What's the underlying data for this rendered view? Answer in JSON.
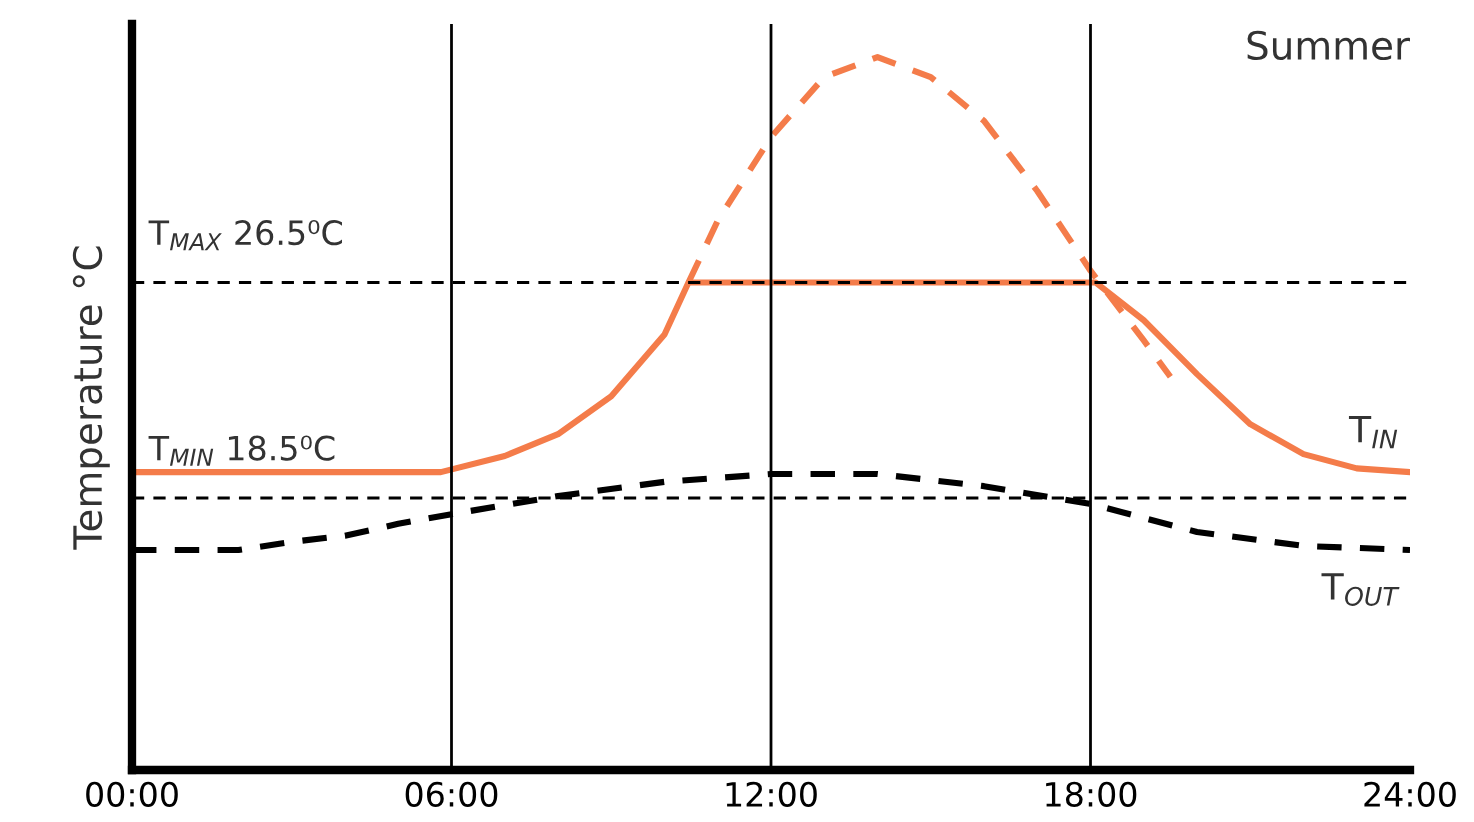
{
  "chart_data": {
    "type": "line",
    "title": "Summer",
    "ylabel": "Temperature °C",
    "xlim": [
      0,
      24
    ],
    "xticks": [
      {
        "value": 0,
        "label": "00:00"
      },
      {
        "value": 6,
        "label": "06:00"
      },
      {
        "value": 12,
        "label": "12:00"
      },
      {
        "value": 18,
        "label": "18:00"
      },
      {
        "value": 24,
        "label": "24:00"
      }
    ],
    "ylim": [
      8.4,
      36.1
    ],
    "tick_labels": "x",
    "grid": false,
    "legend": false,
    "series": [
      {
        "name": "T$_{IN}$",
        "color": "#f47c4a",
        "line_style": "solid",
        "x": [
          0,
          5.8,
          7,
          8,
          9,
          10,
          10.45,
          18.1,
          19,
          20,
          21,
          22,
          23,
          24
        ],
        "values": [
          19.46,
          19.46,
          20.06,
          20.87,
          22.28,
          24.57,
          26.5,
          26.5,
          25.1,
          23.1,
          21.24,
          20.13,
          19.6,
          19.46
        ]
      },
      {
        "color": "#f47c4a",
        "line_style": "dashed",
        "x": [
          10.45,
          11,
          12,
          13,
          14,
          15,
          16,
          17,
          18,
          19,
          19.5
        ],
        "values": [
          26.5,
          28.8,
          31.9,
          34.13,
          34.87,
          34.13,
          32.5,
          29.9,
          26.94,
          24.35,
          23.0
        ]
      },
      {
        "name": "T$_{OUT}$",
        "color": "#000000",
        "line_style": "dashed",
        "x": [
          0,
          2,
          3,
          4,
          5,
          6,
          8,
          10,
          12,
          14,
          16,
          18,
          19,
          20,
          22,
          24
        ],
        "values": [
          16.57,
          16.57,
          16.87,
          17.1,
          17.54,
          17.9,
          18.57,
          19.1,
          19.39,
          19.39,
          18.94,
          18.28,
          17.76,
          17.24,
          16.72,
          16.57
        ]
      }
    ],
    "ref_lines": [
      {
        "axis": "y",
        "value": 26.5,
        "label": "T$_{MAX}$ 26.5⁰C",
        "color": "#000000",
        "line_style": "dashed"
      },
      {
        "axis": "y",
        "value": 18.5,
        "label": "T$_{MIN}$ 18.5⁰C",
        "color": "#000000",
        "line_style": "dashed"
      },
      {
        "axis": "x",
        "value": 6,
        "color": "#000000",
        "line_style": "solid"
      },
      {
        "axis": "x",
        "value": 12,
        "color": "#000000",
        "line_style": "solid"
      },
      {
        "axis": "x",
        "value": 18,
        "color": "#000000",
        "line_style": "solid"
      }
    ]
  }
}
